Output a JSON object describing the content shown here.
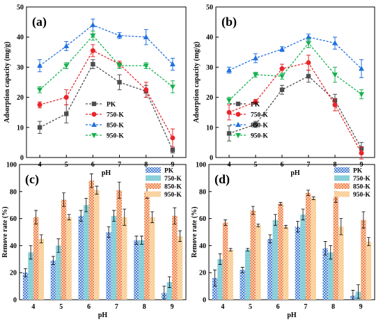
{
  "colors": {
    "PK": "#4d4d4d",
    "750-K": "#e8262b",
    "850-K": "#1e6fe0",
    "950-K": "#16b14f",
    "bar_PK": "#2f6fd0",
    "bar_750-K": "#8dd3dc",
    "bar_850-K": "#f07a3a",
    "bar_950-K": "#f8c98a"
  },
  "chart_data": [
    {
      "panel": "(a)",
      "type": "line",
      "xlabel": "pH",
      "ylabel": "Adsorption capacity (mg/g)",
      "x": [
        4,
        5,
        6,
        7,
        8,
        9
      ],
      "xlim": [
        3.5,
        9.5
      ],
      "ylim": [
        0,
        50
      ],
      "yticks": [
        0,
        10,
        20,
        30,
        40,
        50
      ],
      "legend_position": "bottom-right",
      "series": [
        {
          "name": "PK",
          "marker": "square",
          "values": [
            10,
            14.5,
            31,
            25,
            22,
            2.5
          ],
          "errors": [
            2,
            3,
            1.5,
            2.5,
            2,
            1
          ]
        },
        {
          "name": "750-K",
          "marker": "circle",
          "values": [
            17.5,
            20,
            35.5,
            31,
            22.5,
            6.5
          ],
          "errors": [
            1,
            2.5,
            2,
            1,
            2.5,
            3
          ]
        },
        {
          "name": "850-K",
          "marker": "triangle-up",
          "values": [
            30.5,
            37,
            44,
            40.5,
            40,
            31
          ],
          "errors": [
            2,
            1.5,
            2,
            1,
            2.5,
            2
          ]
        },
        {
          "name": "950-K",
          "marker": "triangle-down",
          "values": [
            22.5,
            30.5,
            40.5,
            30.5,
            30.5,
            23.5
          ],
          "errors": [
            1,
            1,
            1.5,
            1,
            1,
            2
          ]
        }
      ]
    },
    {
      "panel": "(b)",
      "type": "line",
      "xlabel": "pH",
      "ylabel": "Adsorption capacity (mg/g)",
      "x": [
        4,
        5,
        6,
        7,
        8,
        9
      ],
      "xlim": [
        3.5,
        9.5
      ],
      "ylim": [
        0,
        50
      ],
      "yticks": [
        0,
        10,
        20,
        30,
        40,
        50
      ],
      "legend_position": "bottom-left",
      "series": [
        {
          "name": "PK",
          "marker": "square",
          "values": [
            8,
            11,
            22.5,
            27,
            19,
            3
          ],
          "errors": [
            2.5,
            1,
            1.5,
            2,
            2,
            2
          ]
        },
        {
          "name": "750-K",
          "marker": "circle",
          "values": [
            15,
            18.5,
            29.5,
            31.5,
            17.5,
            1.5
          ],
          "errors": [
            2.5,
            0.8,
            1.5,
            2.5,
            2,
            2
          ]
        },
        {
          "name": "850-K",
          "marker": "triangle-up",
          "values": [
            29,
            33,
            36,
            40,
            38,
            29.5
          ],
          "errors": [
            1,
            1.5,
            0.8,
            1,
            2,
            3
          ]
        },
        {
          "name": "950-K",
          "marker": "triangle-down",
          "values": [
            19,
            27.5,
            27,
            38,
            27.5,
            21
          ],
          "errors": [
            1,
            0.8,
            1,
            1.5,
            2.5,
            1.5
          ]
        }
      ]
    },
    {
      "panel": "(c)",
      "type": "bar",
      "xlabel": "pH",
      "ylabel": "Remove rate (%)",
      "categories": [
        "4",
        "5",
        "6",
        "7",
        "8",
        "9"
      ],
      "ylim": [
        0,
        100
      ],
      "yticks": [
        0,
        20,
        40,
        60,
        80,
        100
      ],
      "legend_position": "top-right",
      "series": [
        {
          "name": "PK",
          "values": [
            20,
            29,
            62,
            50,
            44,
            5
          ],
          "errors": [
            3,
            3,
            4,
            4,
            3,
            5
          ]
        },
        {
          "name": "750-K",
          "values": [
            35,
            40,
            70,
            62,
            44,
            13
          ],
          "errors": [
            5,
            5,
            5,
            4,
            3,
            4
          ]
        },
        {
          "name": "850-K",
          "values": [
            61,
            74,
            88,
            81,
            80,
            62
          ],
          "errors": [
            5,
            5,
            5,
            6,
            5,
            6
          ]
        },
        {
          "name": "950-K",
          "values": [
            45,
            61,
            81,
            61,
            61,
            47
          ],
          "errors": [
            3,
            2,
            3,
            6,
            4,
            4
          ]
        }
      ]
    },
    {
      "panel": "(d)",
      "type": "bar",
      "xlabel": "pH",
      "ylabel": "Remove rate (%)",
      "categories": [
        "4",
        "5",
        "6",
        "7",
        "8",
        "9"
      ],
      "ylim": [
        0,
        100
      ],
      "yticks": [
        0,
        20,
        40,
        60,
        80,
        100
      ],
      "legend_position": "top-right",
      "series": [
        {
          "name": "PK",
          "values": [
            16,
            22,
            45,
            54,
            38,
            3
          ],
          "errors": [
            6,
            2,
            3,
            4,
            5,
            4
          ]
        },
        {
          "name": "750-K",
          "values": [
            30,
            37,
            59,
            63,
            35,
            6
          ],
          "errors": [
            4,
            1,
            4,
            4,
            5,
            5
          ]
        },
        {
          "name": "850-K",
          "values": [
            57,
            66,
            71,
            79,
            76,
            59
          ],
          "errors": [
            2,
            3,
            1,
            2,
            4,
            6
          ]
        },
        {
          "name": "950-K",
          "values": [
            37,
            55,
            54,
            75,
            54,
            43
          ],
          "errors": [
            1,
            1,
            1,
            1,
            6,
            3
          ]
        }
      ]
    }
  ]
}
